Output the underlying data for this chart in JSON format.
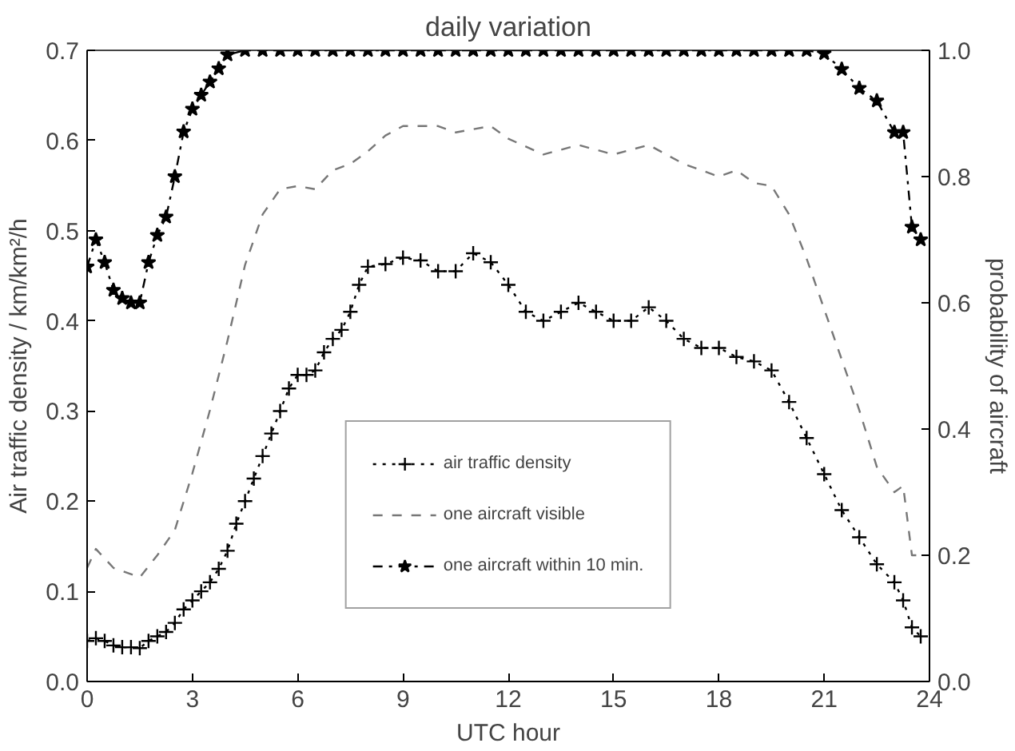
{
  "chart_data": {
    "type": "line",
    "title": "daily variation",
    "xlabel": "UTC hour",
    "ylabel": "Air traffic density / km/km²/h",
    "y2label": "probability of aircraft",
    "xlim": [
      0,
      24
    ],
    "xticks": [
      0,
      3,
      6,
      9,
      12,
      15,
      18,
      21,
      24
    ],
    "ylim": [
      0,
      0.7
    ],
    "yticks": [
      {
        "value": 0,
        "label": "0.0"
      },
      0.1,
      0.2,
      0.3,
      0.4,
      0.5,
      0.6,
      0.7
    ],
    "y2lim": [
      0,
      1
    ],
    "y2ticks": [
      {
        "value": 0,
        "label": "0.0"
      },
      0.2,
      0.4,
      0.6,
      0.8,
      {
        "value": 1,
        "label": "1.0"
      }
    ],
    "grid": false,
    "legend": "bottom",
    "series": [
      {
        "name": "air traffic density",
        "color": "#000000",
        "marker": "cross",
        "line_style": "dotted",
        "x": [
          0,
          0.25,
          0.5,
          0.75,
          1,
          1.25,
          1.5,
          1.75,
          2,
          2.25,
          2.5,
          2.75,
          3,
          3.25,
          3.5,
          3.75,
          4,
          4.25,
          4.5,
          4.75,
          5,
          5.25,
          5.5,
          5.75,
          6,
          6.25,
          6.5,
          6.75,
          7,
          7.25,
          7.5,
          7.75,
          8,
          8.5,
          9,
          9.5,
          10,
          10.5,
          11,
          11.5,
          12,
          12.5,
          13,
          13.5,
          14,
          14.5,
          15,
          15.5,
          16,
          16.5,
          17,
          17.5,
          18,
          18.5,
          19,
          19.5,
          20,
          20.5,
          21,
          21.5,
          22,
          22.5,
          23,
          23.25,
          23.5,
          23.75
        ],
        "values": [
          0.045,
          0.048,
          0.045,
          0.04,
          0.038,
          0.038,
          0.037,
          0.045,
          0.05,
          0.055,
          0.065,
          0.08,
          0.09,
          0.1,
          0.11,
          0.125,
          0.145,
          0.175,
          0.2,
          0.225,
          0.25,
          0.275,
          0.3,
          0.325,
          0.34,
          0.34,
          0.345,
          0.365,
          0.38,
          0.39,
          0.41,
          0.44,
          0.46,
          0.463,
          0.47,
          0.467,
          0.455,
          0.455,
          0.475,
          0.465,
          0.44,
          0.41,
          0.4,
          0.41,
          0.42,
          0.41,
          0.4,
          0.4,
          0.415,
          0.4,
          0.38,
          0.37,
          0.37,
          0.36,
          0.355,
          0.345,
          0.31,
          0.27,
          0.23,
          0.19,
          0.16,
          0.13,
          0.11,
          0.09,
          0.06,
          0.05
        ]
      },
      {
        "name": "one aircraft visible",
        "color": "#777777",
        "marker": "none",
        "line_style": "dashed",
        "axis": "y2",
        "x": [
          0,
          0.25,
          0.75,
          1.5,
          2,
          2.5,
          3,
          3.5,
          4,
          4.5,
          5,
          5.5,
          6,
          6.5,
          7,
          7.5,
          8,
          8.5,
          9,
          10,
          10.5,
          11,
          11.5,
          12,
          13,
          14,
          15,
          16,
          17,
          18,
          18.5,
          19,
          19.5,
          20,
          20.5,
          21,
          21.5,
          22,
          22.5,
          23,
          23.25,
          23.5,
          23.75
        ],
        "values": [
          0.18,
          0.21,
          0.18,
          0.165,
          0.2,
          0.24,
          0.33,
          0.43,
          0.54,
          0.66,
          0.74,
          0.78,
          0.785,
          0.78,
          0.81,
          0.82,
          0.84,
          0.865,
          0.88,
          0.88,
          0.87,
          0.875,
          0.88,
          0.86,
          0.835,
          0.85,
          0.835,
          0.85,
          0.82,
          0.8,
          0.81,
          0.79,
          0.785,
          0.74,
          0.67,
          0.59,
          0.51,
          0.43,
          0.34,
          0.3,
          0.31,
          0.2,
          0.2
        ]
      },
      {
        "name": "one aircraft within 10 min.",
        "color": "#000000",
        "marker": "star",
        "line_style": "dashdot",
        "axis": "y2",
        "x": [
          0,
          0.25,
          0.5,
          0.75,
          1,
          1.25,
          1.5,
          1.75,
          2,
          2.25,
          2.5,
          2.75,
          3,
          3.25,
          3.5,
          3.75,
          4,
          4.5,
          5,
          5.5,
          6,
          6.5,
          7,
          7.5,
          8,
          8.5,
          9,
          9.5,
          10,
          10.5,
          11,
          11.5,
          12,
          12.5,
          13,
          13.5,
          14,
          14.5,
          15,
          15.5,
          16,
          16.5,
          17,
          17.5,
          18,
          18.5,
          19,
          19.5,
          20,
          20.5,
          21,
          21.5,
          22,
          22.5,
          23,
          23.25,
          23.5,
          23.75
        ],
        "values": [
          0.657,
          0.7,
          0.664,
          0.62,
          0.607,
          0.6,
          0.6,
          0.664,
          0.707,
          0.736,
          0.8,
          0.871,
          0.907,
          0.929,
          0.95,
          0.971,
          0.993,
          1,
          1,
          1,
          1,
          1,
          1,
          1,
          1,
          1,
          1,
          1,
          1,
          1,
          1,
          1,
          1,
          1,
          1,
          1,
          1,
          1,
          1,
          1,
          1,
          1,
          1,
          1,
          1,
          1,
          1,
          1,
          1,
          1,
          0.995,
          0.97,
          0.94,
          0.92,
          0.87,
          0.87,
          0.72,
          0.7
        ]
      }
    ]
  }
}
